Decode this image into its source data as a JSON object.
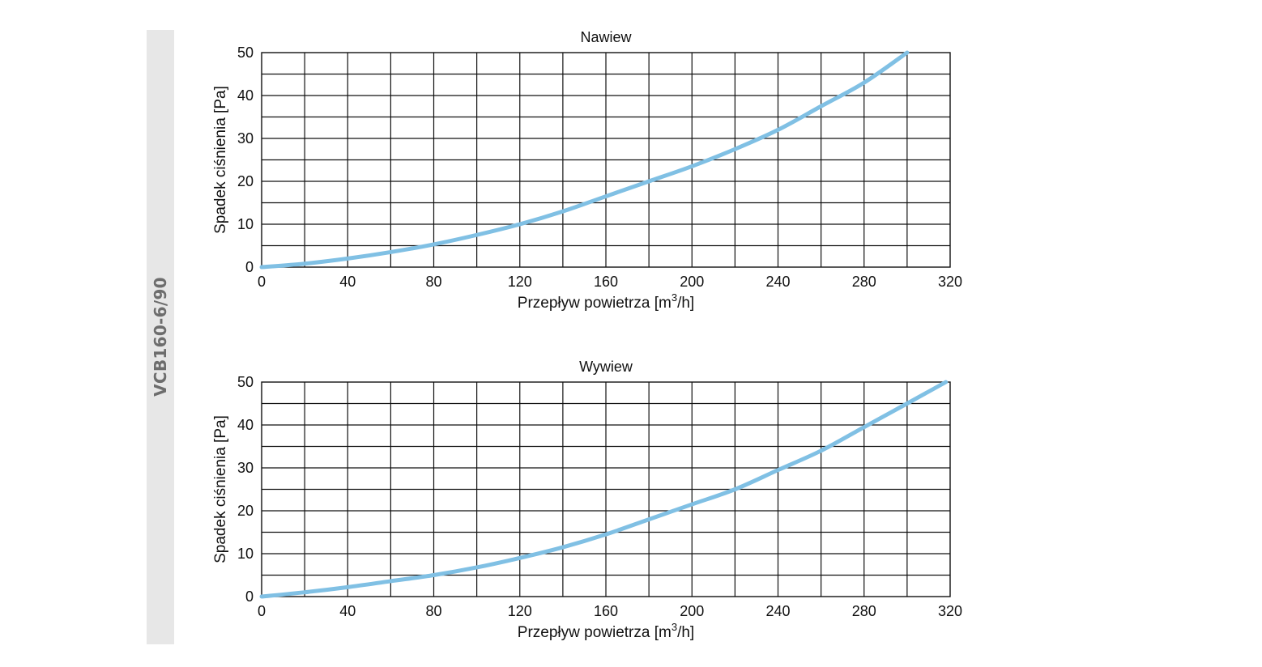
{
  "side_label": "VCB160-6/90",
  "colors": {
    "curve": "#80c0e4",
    "grid": "#111111",
    "side_band": "#e7e7e7",
    "side_text": "#6d6d6d"
  },
  "chart_data": [
    {
      "type": "line",
      "title": "Nawiew",
      "xlabel": "Przepływ powietrza [m",
      "xlabel_sup": "3",
      "xlabel_tail": "/h]",
      "ylabel": "Spadek ciśnienia [Pa]",
      "xlim": [
        0,
        320
      ],
      "ylim": [
        0,
        50
      ],
      "x_ticks": [
        0,
        40,
        80,
        120,
        160,
        200,
        240,
        280,
        320
      ],
      "y_ticks": [
        0,
        10,
        20,
        30,
        40,
        50
      ],
      "x_grid_step": 20,
      "y_grid_step": 5,
      "grid": true,
      "series": [
        {
          "name": "Nawiew",
          "x": [
            0,
            20,
            40,
            60,
            80,
            100,
            120,
            140,
            160,
            180,
            200,
            220,
            240,
            260,
            280,
            300
          ],
          "y": [
            0,
            0.8,
            2,
            3.5,
            5.3,
            7.5,
            10,
            13,
            16.5,
            20,
            23.5,
            27.5,
            32,
            37.5,
            43,
            50
          ]
        }
      ]
    },
    {
      "type": "line",
      "title": "Wywiew",
      "xlabel": "Przepływ powietrza [m",
      "xlabel_sup": "3",
      "xlabel_tail": "/h]",
      "ylabel": "Spadek ciśnienia [Pa]",
      "xlim": [
        0,
        320
      ],
      "ylim": [
        0,
        50
      ],
      "x_ticks": [
        0,
        40,
        80,
        120,
        160,
        200,
        240,
        280,
        320
      ],
      "y_ticks": [
        0,
        10,
        20,
        30,
        40,
        50
      ],
      "x_grid_step": 20,
      "y_grid_step": 5,
      "grid": true,
      "series": [
        {
          "name": "Wywiew",
          "x": [
            0,
            20,
            40,
            60,
            80,
            100,
            120,
            140,
            160,
            180,
            200,
            220,
            240,
            260,
            280,
            300,
            318
          ],
          "y": [
            0,
            1,
            2.2,
            3.6,
            5,
            6.8,
            9,
            11.5,
            14.5,
            18,
            21.5,
            25,
            29.5,
            34,
            39.5,
            45,
            50
          ]
        }
      ]
    }
  ]
}
